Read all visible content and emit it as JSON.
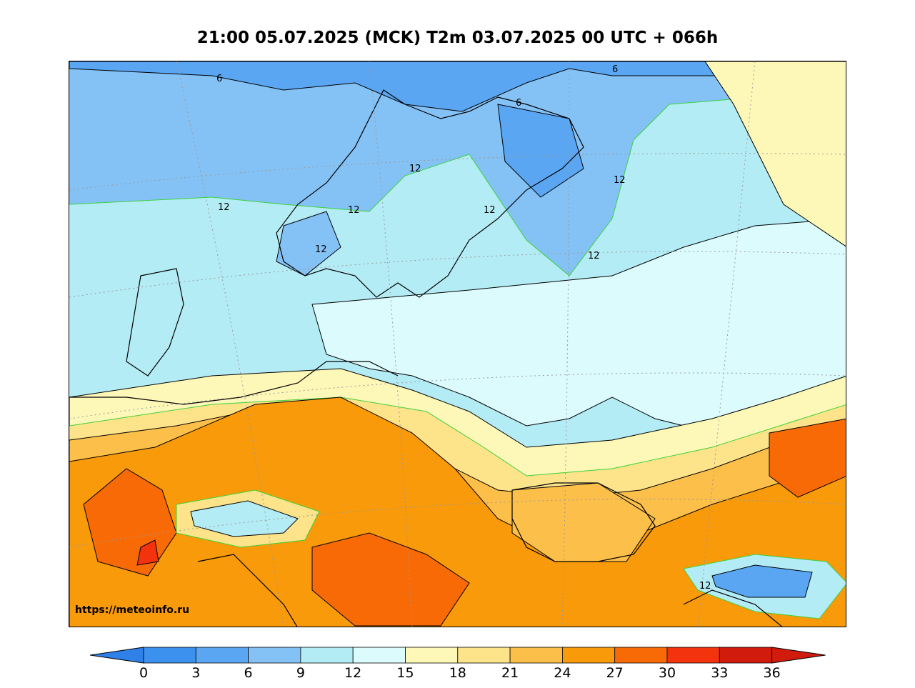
{
  "title": "21:00 05.07.2025 (MCK) T2m 03.07.2025 00 UTC + 066h",
  "watermark": "https://meteoinfo.ru",
  "contour_labels": [
    "6",
    "6",
    "6",
    "12",
    "12",
    "12",
    "12",
    "12",
    "12",
    "12",
    "12"
  ],
  "colorbar": {
    "ticks": [
      "0",
      "3",
      "6",
      "9",
      "12",
      "15",
      "18",
      "21",
      "24",
      "27",
      "30",
      "33",
      "36"
    ],
    "colors": [
      "#2f80e8",
      "#3c90ee",
      "#5aa6f2",
      "#84c2f6",
      "#b4ecf6",
      "#dcfbfd",
      "#fef8b8",
      "#fde38a",
      "#fbbf4a",
      "#f89a0a",
      "#f86a06",
      "#f3320e",
      "#d11b0d"
    ]
  }
}
